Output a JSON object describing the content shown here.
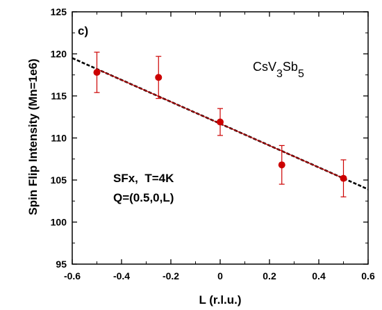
{
  "chart_data": {
    "type": "scatter",
    "panel_label": "c)",
    "compound": {
      "base": "CsV",
      "sub1": "3",
      "mid": "Sb",
      "sub2": "5"
    },
    "annotation_lines": [
      "SFx,  T=4K",
      "Q=(0.5,0,L)"
    ],
    "xlabel": "L (r.l.u.)",
    "ylabel": "Spin Flip Intensity (Mn=1e6)",
    "xlim": [
      -0.6,
      0.6
    ],
    "ylim": [
      95,
      125
    ],
    "xticks": [
      -0.6,
      -0.4,
      -0.2,
      0,
      0.2,
      0.4,
      0.6
    ],
    "xtick_labels": [
      "-0.6",
      "-0.4",
      "-0.2",
      "0",
      "0.2",
      "0.4",
      "0.6"
    ],
    "yticks": [
      95,
      100,
      105,
      110,
      115,
      120,
      125
    ],
    "ytick_labels": [
      "95",
      "100",
      "105",
      "110",
      "115",
      "120",
      "125"
    ],
    "points": {
      "x": [
        -0.5,
        -0.25,
        0,
        0.25,
        0.5
      ],
      "y": [
        117.8,
        117.2,
        111.9,
        106.8,
        105.2
      ],
      "yerr": [
        2.4,
        2.5,
        1.6,
        2.3,
        2.2
      ],
      "color": "#cc0000"
    },
    "fit_red": {
      "x": [
        -0.5,
        0.5
      ],
      "y": [
        118.2,
        105.2
      ],
      "color": "#cc0000"
    },
    "fit_black": {
      "x": [
        -0.6,
        0.6
      ],
      "y": [
        119.5,
        103.9
      ],
      "color": "#000000",
      "style": "dashed"
    },
    "grid": false
  }
}
